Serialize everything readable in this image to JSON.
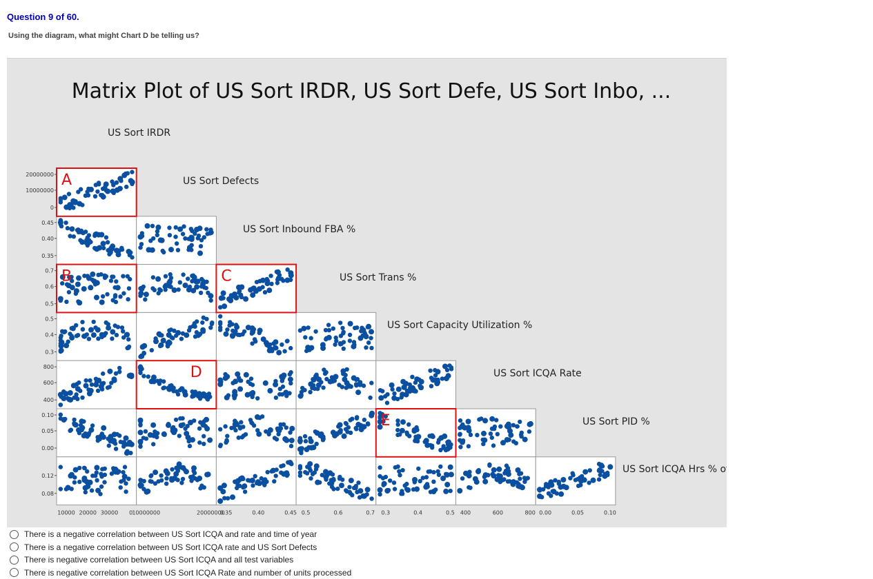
{
  "question": {
    "header": "Question 9 of 60.",
    "prompt": "Using the diagram, what might Chart D be telling us?"
  },
  "figure": {
    "title": "Matrix Plot of US Sort IRDR, US Sort Defe, US Sort Inbo, ...",
    "variables": [
      "US Sort IRDR",
      "US Sort Defects",
      "US Sort Inbound FBA %",
      "US Sort Trans %",
      "US Sort Capacity Utilization %",
      "US Sort ICQA Rate",
      "US Sort PID %",
      "US Sort ICQA Hrs % of"
    ],
    "callouts": [
      {
        "letter": "A",
        "row": 0,
        "col": 0
      },
      {
        "letter": "B",
        "row": 2,
        "col": 0
      },
      {
        "letter": "C",
        "row": 2,
        "col": 2
      },
      {
        "letter": "D",
        "row": 4,
        "col": 1
      },
      {
        "letter": "E",
        "row": 5,
        "col": 4
      }
    ],
    "y_ticks": [
      [
        "20000000",
        "10000000",
        "0"
      ],
      [
        "0.45",
        "0.40",
        "0.35"
      ],
      [
        "0.7",
        "0.6",
        "0.5"
      ],
      [
        "0.5",
        "0.4",
        "0.3"
      ],
      [
        "800",
        "600",
        "400"
      ],
      [
        "0.10",
        "0.05",
        "0.00"
      ],
      [
        "0.12",
        "0.08"
      ]
    ],
    "x_ticks": [
      [
        "10000",
        "20000",
        "30000",
        "0"
      ],
      [
        "10000000",
        "20000000"
      ],
      [
        "0.35",
        "0.40",
        "0.45"
      ],
      [
        "0.5",
        "0.6",
        "0.7"
      ],
      [
        "0.3",
        "0.4",
        "0.5"
      ],
      [
        "400",
        "600",
        "800"
      ],
      [
        "0.00",
        "0.05",
        "0.10"
      ]
    ],
    "colors": {
      "points": "#0a4fa0",
      "callout": "#e01010",
      "background": "#e4e4e4"
    }
  },
  "options": [
    "There is a negative correlation between US Sort ICQA and rate and time of year",
    "There is a negative correlation between US Sort ICQA rate and US Sort Defects",
    "There is negative correlation between US Sort ICQA and all test variables",
    "There is negative correlation between US Sort ICQA Rate and number of units processed"
  ]
}
